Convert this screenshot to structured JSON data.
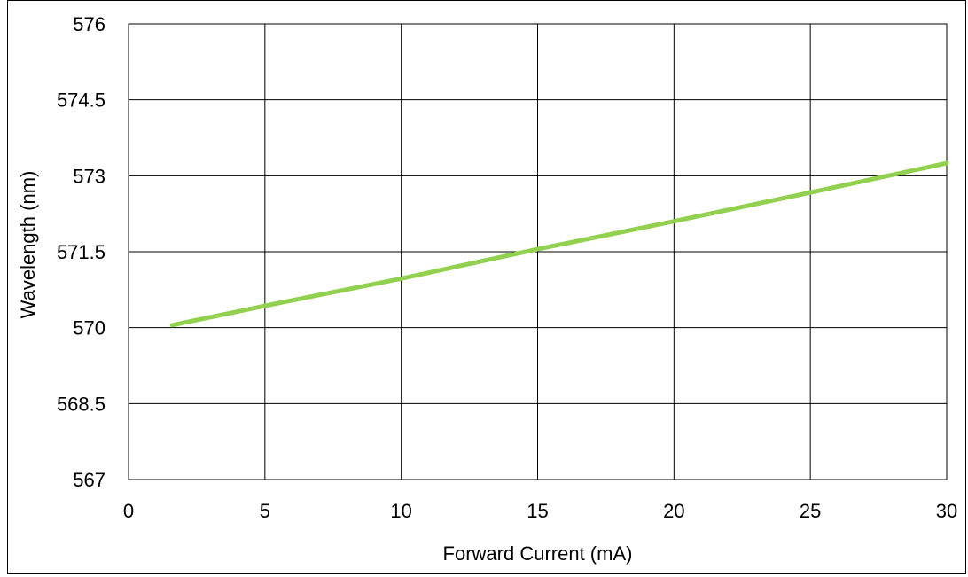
{
  "chart_data": {
    "type": "line",
    "xlabel": "Forward Current (mA)",
    "ylabel": "Wavelength (nm)",
    "xlim": [
      0,
      30
    ],
    "ylim": [
      567,
      576
    ],
    "x_ticks": [
      0,
      5,
      10,
      15,
      20,
      25,
      30
    ],
    "y_ticks": [
      567,
      568.5,
      570,
      571.5,
      573,
      574.5,
      576
    ],
    "x_tick_labels": [
      "0",
      "5",
      "10",
      "15",
      "20",
      "25",
      "30"
    ],
    "y_tick_labels": [
      "567",
      "568.5",
      "570",
      "571.5",
      "573",
      "574.5",
      "576"
    ],
    "grid": true,
    "series": [
      {
        "x": [
          1.6,
          5,
          10,
          15,
          20,
          25,
          30
        ],
        "y": [
          570.05,
          570.43,
          570.97,
          571.55,
          572.1,
          572.67,
          573.25
        ]
      }
    ],
    "colors": {
      "line": "#92d050",
      "grid": "#000000"
    }
  }
}
